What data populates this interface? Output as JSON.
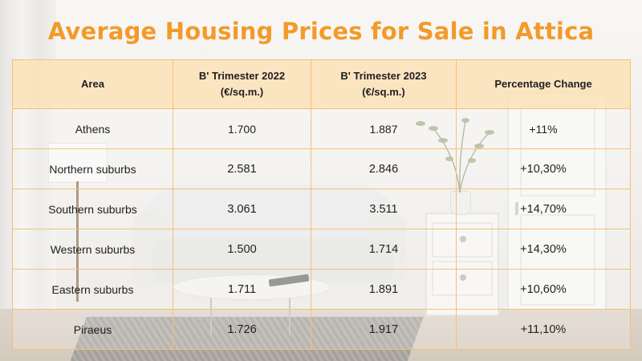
{
  "title": "Average Housing Prices for Sale in Attica",
  "colors": {
    "title": "#f39a2a",
    "header_bg": "#fde2b6",
    "grid_lines": "#f6c074"
  },
  "table": {
    "headers": [
      {
        "line1": "Area",
        "line2": ""
      },
      {
        "line1": "B' Trimester 2022",
        "line2": "(€/sq.m.)"
      },
      {
        "line1": "B' Trimester 2023",
        "line2": "(€/sq.m.)"
      },
      {
        "line1": "Percentage Change",
        "line2": ""
      }
    ],
    "rows": [
      {
        "area": "Athens",
        "price_2022": "1.700",
        "price_2023": "1.887",
        "change": "+11%"
      },
      {
        "area": "Northern suburbs",
        "price_2022": "2.581",
        "price_2023": "2.846",
        "change": "+10,30%"
      },
      {
        "area": "Southern suburbs",
        "price_2022": "3.061",
        "price_2023": "3.511",
        "change": "+14,70%"
      },
      {
        "area": "Western suburbs",
        "price_2022": "1.500",
        "price_2023": "1.714",
        "change": "+14,30%"
      },
      {
        "area": "Eastern suburbs",
        "price_2022": "1.711",
        "price_2023": "1.891",
        "change": "+10,60%"
      },
      {
        "area": "Piraeus",
        "price_2022": "1.726",
        "price_2023": "1.917",
        "change": "+11,10%"
      }
    ]
  },
  "chart_data": {
    "type": "table",
    "title": "Average Housing Prices for Sale in Attica",
    "columns": [
      "Area",
      "B' Trimester 2022 (€/sq.m.)",
      "B' Trimester 2023 (€/sq.m.)",
      "Percentage Change"
    ],
    "categories": [
      "Athens",
      "Northern suburbs",
      "Southern suburbs",
      "Western suburbs",
      "Eastern suburbs",
      "Piraeus"
    ],
    "series": [
      {
        "name": "B' Trimester 2022 (€/sq.m.)",
        "values": [
          1700,
          2581,
          3061,
          1500,
          1711,
          1726
        ]
      },
      {
        "name": "B' Trimester 2023 (€/sq.m.)",
        "values": [
          1887,
          2846,
          3511,
          1714,
          1891,
          1917
        ]
      },
      {
        "name": "Percentage Change",
        "values": [
          11,
          10.3,
          14.7,
          14.3,
          10.6,
          11.1
        ]
      }
    ]
  }
}
